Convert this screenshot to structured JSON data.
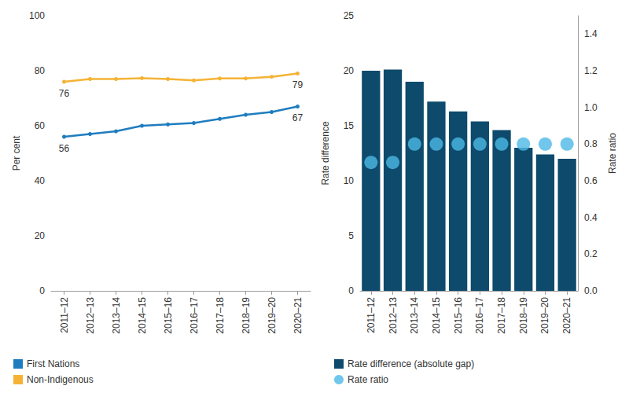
{
  "chart_data": [
    {
      "type": "line",
      "categories": [
        "2011–12",
        "2012–13",
        "2013–14",
        "2014–15",
        "2015–16",
        "2016–17",
        "2017–18",
        "2018–19",
        "2019–20",
        "2020–21"
      ],
      "ylabel": "Per cent",
      "ylim": [
        0,
        100
      ],
      "yticks": [
        0,
        20,
        40,
        60,
        80,
        100
      ],
      "grid": false,
      "legend": "bottom-left",
      "data_labels": true,
      "series": [
        {
          "name": "First Nations",
          "color": "#1f7dbf",
          "marker": "circle",
          "values": [
            56,
            57,
            58,
            60,
            60.5,
            61,
            62.5,
            64,
            65,
            67
          ],
          "value_labels": [
            "56",
            null,
            null,
            null,
            null,
            null,
            null,
            null,
            null,
            "67"
          ]
        },
        {
          "name": "Non-Indigenous",
          "color": "#f5b335",
          "marker": "circle",
          "values": [
            76,
            77,
            77,
            77.3,
            77,
            76.5,
            77.2,
            77.2,
            77.8,
            79
          ],
          "value_labels": [
            "76",
            null,
            null,
            null,
            null,
            null,
            null,
            null,
            null,
            "79"
          ]
        }
      ]
    },
    {
      "type": "bar",
      "categories": [
        "2011–12",
        "2012–13",
        "2013–14",
        "2014–15",
        "2015–16",
        "2016–17",
        "2017–18",
        "2018–19",
        "2019–20",
        "2020–21"
      ],
      "ylabel": "Rate difference",
      "y2label": "Rate ratio",
      "ylim": [
        0,
        25
      ],
      "yticks": [
        0,
        5,
        10,
        15,
        20,
        25
      ],
      "y2lim": [
        0,
        1.5
      ],
      "y2ticks": [
        {
          "value": 0,
          "label": "0.0"
        },
        {
          "value": 0.2,
          "label": "0.2"
        },
        {
          "value": 0.4,
          "label": "0.4"
        },
        {
          "value": 0.6,
          "label": "0.6"
        },
        {
          "value": 0.8,
          "label": "0.8"
        },
        {
          "value": 1,
          "label": "1.0"
        },
        {
          "value": 1.2,
          "label": "1.2"
        },
        {
          "value": 1.4,
          "label": "1.4"
        }
      ],
      "grid": false,
      "legend": "bottom-left",
      "series": [
        {
          "name": "Rate difference (absolute gap)",
          "type": "bar",
          "color": "#0d4a6b",
          "values": [
            20,
            20.1,
            19,
            17.2,
            16.3,
            15.4,
            14.6,
            13,
            12.4,
            12
          ]
        },
        {
          "name": "Rate ratio",
          "type": "scatter",
          "axis": "y2",
          "color": "#4cb8e6",
          "marker": "circle",
          "values": [
            0.7,
            0.7,
            0.8,
            0.8,
            0.8,
            0.8,
            0.8,
            0.8,
            0.8,
            0.8
          ]
        }
      ]
    }
  ]
}
